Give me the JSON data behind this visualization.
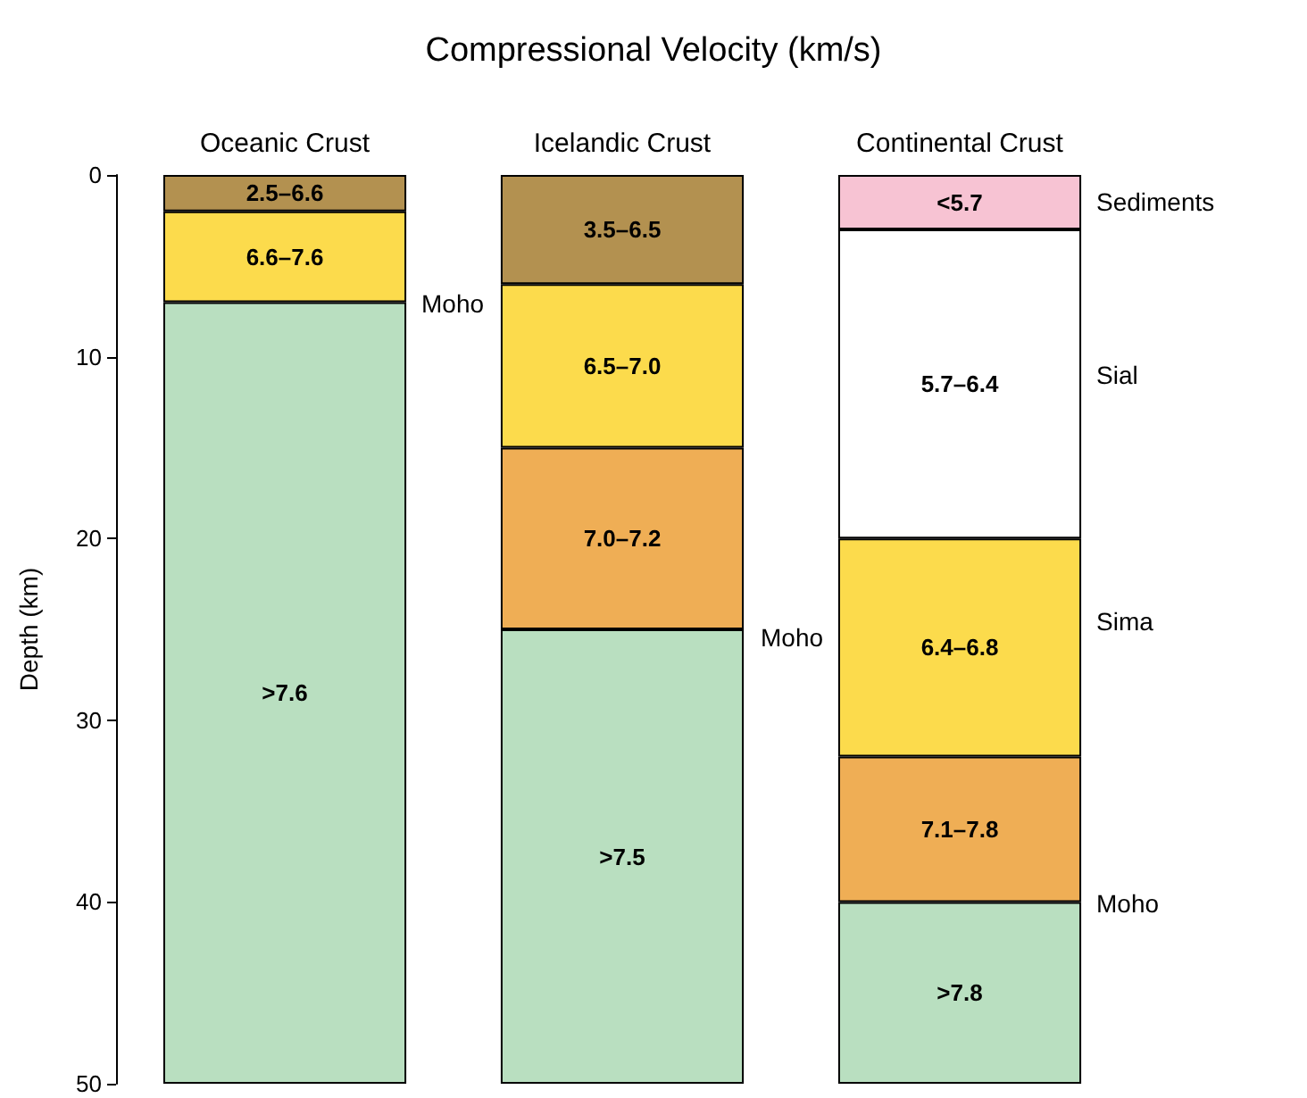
{
  "chart_data": {
    "type": "bar",
    "title": "Compressional Velocity (km/s)",
    "ylabel": "Depth (km)",
    "stacked": true,
    "categories": [
      "Oceanic Crust",
      "Icelandic Crust",
      "Continental Crust"
    ],
    "ylim": [
      50,
      0
    ],
    "yticks": [
      0,
      10,
      20,
      30,
      40,
      50
    ],
    "series": [
      {
        "values": [
          2,
          6,
          3
        ],
        "colors": [
          "#b39150",
          "#b39150",
          "#f7c3d3"
        ],
        "value_labels": [
          "2.5–6.6",
          "3.5–6.5",
          "<5.7"
        ]
      },
      {
        "values": [
          5,
          9,
          17
        ],
        "colors": [
          "#fcdb4c",
          "#fcdb4c",
          "#ffffff"
        ],
        "value_labels": [
          "6.6–7.6",
          "6.5–7.0",
          "5.7–6.4"
        ]
      },
      {
        "values": [
          43,
          10,
          12
        ],
        "colors": [
          "#b9dfc0",
          "#efae55",
          "#fcdb4c"
        ],
        "value_labels": [
          ">7.6",
          "7.0–7.2",
          "6.4–6.8"
        ]
      },
      {
        "values": [
          null,
          25,
          8
        ],
        "colors": [
          null,
          "#b9dfc0",
          "#efae55"
        ],
        "value_labels": [
          null,
          ">7.5",
          "7.1–7.8"
        ]
      },
      {
        "values": [
          null,
          null,
          10
        ],
        "colors": [
          null,
          null,
          "#b9dfc0"
        ],
        "value_labels": [
          null,
          null,
          ">7.8"
        ]
      }
    ],
    "annotations": [
      "Moho",
      "Moho",
      "Moho",
      "Sediments",
      "Sial",
      "Sima"
    ]
  }
}
